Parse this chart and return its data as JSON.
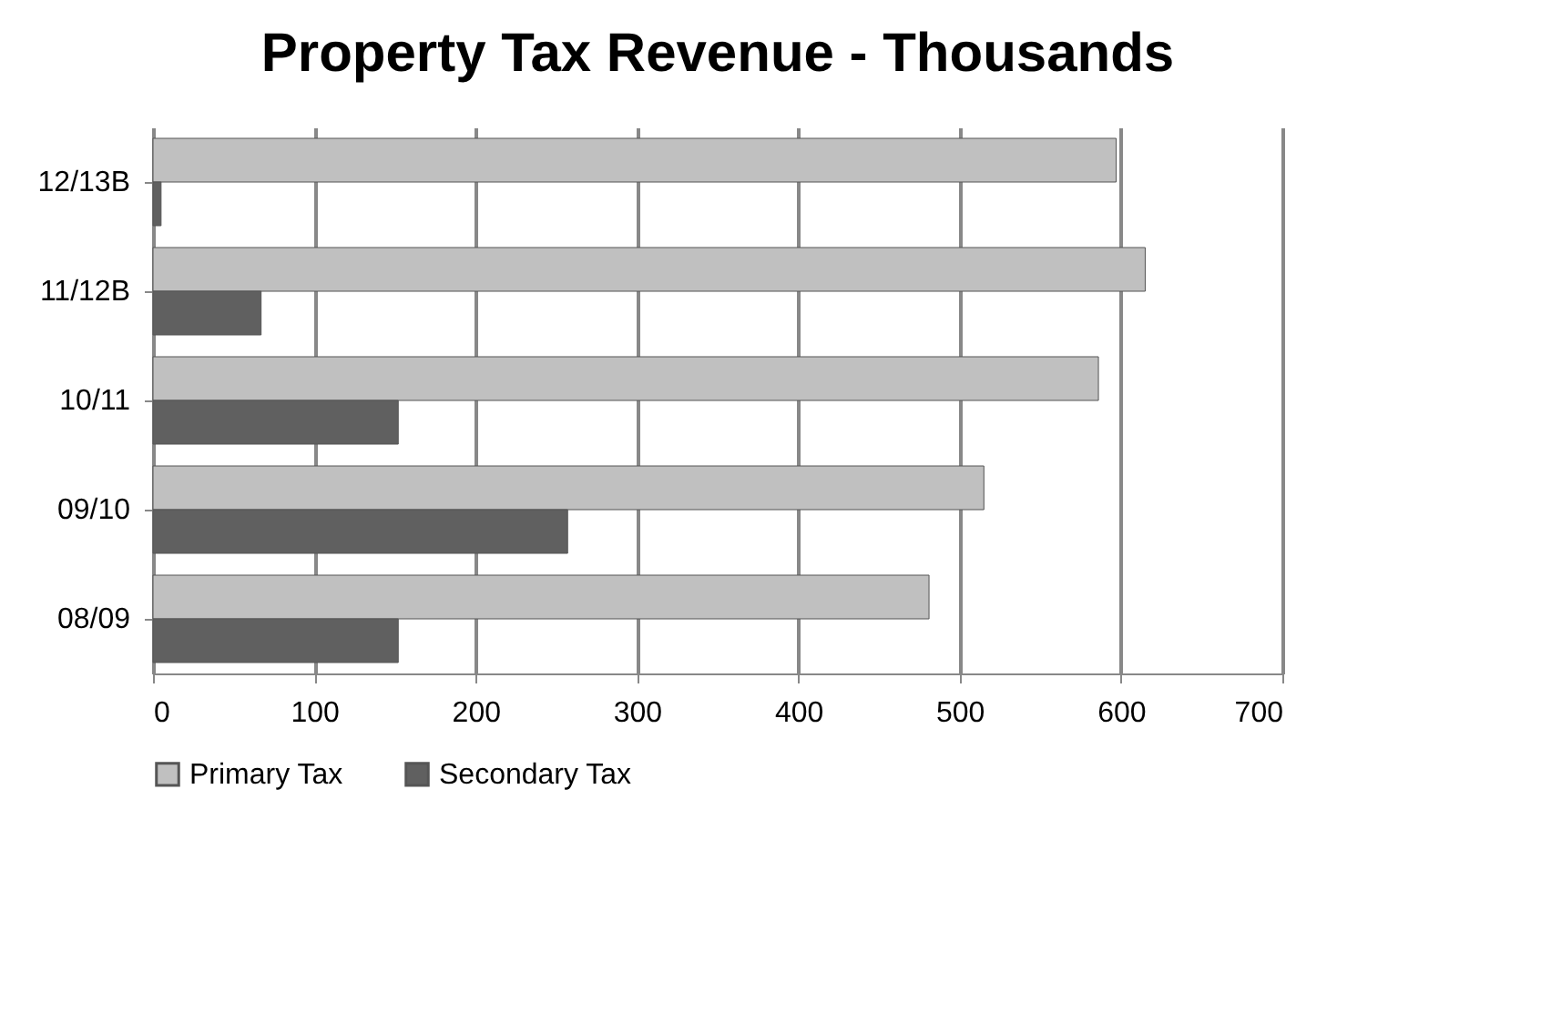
{
  "chart_data": {
    "type": "bar",
    "orientation": "horizontal",
    "title": "Property Tax Revenue - Thousands",
    "categories": [
      "12/13B",
      "11/12B",
      "10/11",
      "09/10",
      "08/09"
    ],
    "series": [
      {
        "name": "Primary Tax",
        "color": "#c0c0c0",
        "values": [
          597,
          615,
          586,
          515,
          481
        ]
      },
      {
        "name": "Secondary Tax",
        "color": "#606060",
        "values": [
          5,
          67,
          152,
          257,
          152
        ]
      }
    ],
    "xlim": [
      0,
      700
    ],
    "xticks": [
      0,
      100,
      200,
      300,
      400,
      500,
      600,
      700
    ],
    "grid": "x",
    "legend": "bottom"
  }
}
